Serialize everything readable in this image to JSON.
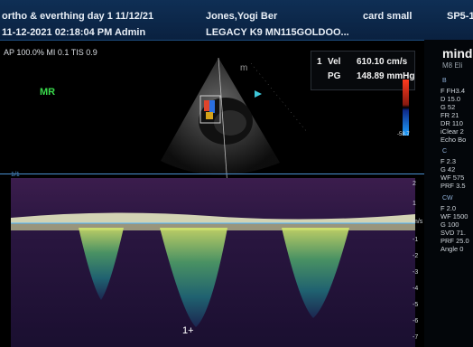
{
  "header": {
    "line1_left": "ortho & everthing day 1 11/12/21",
    "line1_patient": "Jones,Yogi Ber",
    "line1_exam": "card small",
    "line1_probe": "SP5-1",
    "line2_left": "11-12-2021 02:18:04 PM Admin",
    "line2_center": "LEGACY K9 MN115GOLDOO..."
  },
  "imaging_info": "AP 100.0%  MI 0.1  TIS 0.9",
  "mode_label": "MR",
  "measurement": {
    "index": "1",
    "vel_label": "Vel",
    "vel_value": "610.10 cm/s",
    "pg_label": "PG",
    "pg_value": "148.89 mmHg"
  },
  "color_scale_value": "-58.7",
  "sweep_marker": "1/1",
  "cursor_label": "1+",
  "side_panel": {
    "brand": "mind",
    "model": "M8 Eli",
    "b_section": "B",
    "b_params": [
      "F FH3.4",
      "D 15.0",
      "G 52",
      "FR 21",
      "DR 110",
      "iClear 2",
      "Echo Bo"
    ],
    "c_section": "C",
    "c_params": [
      "F 2.3",
      "G 42",
      "WF 575",
      "PRF 3.5"
    ],
    "cw_section": "CW",
    "cw_params": [
      "F 2.0",
      "WF 1500",
      "G 100",
      "SVD 71.",
      "PRF 25.0",
      "Angle 0"
    ]
  },
  "scale_labels": [
    "2",
    "1",
    "m/s",
    "-1",
    "-2",
    "-3",
    "-4",
    "-5",
    "-6",
    "-7"
  ]
}
